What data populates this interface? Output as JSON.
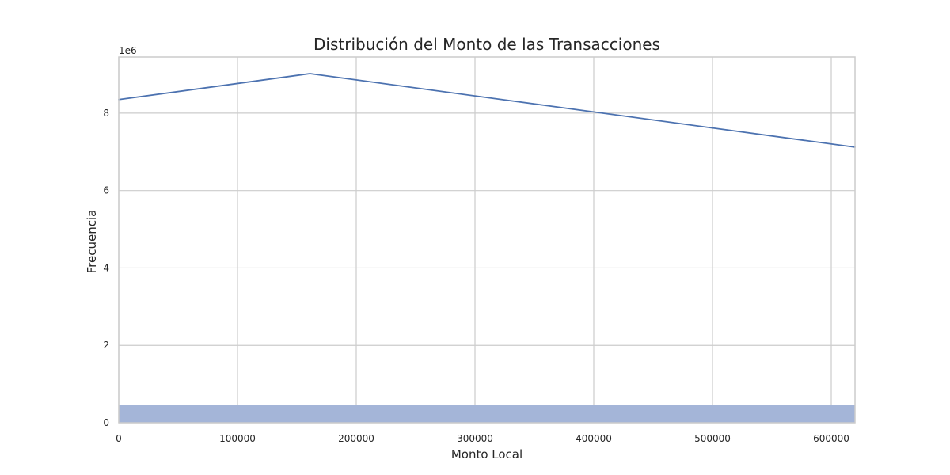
{
  "chart_data": {
    "type": "line",
    "title": "Distribución del Monto de las Transacciones",
    "xlabel": "Monto Local",
    "ylabel": "Frecuencia",
    "y_offset_label": "1e6",
    "xlim": [
      0,
      620000
    ],
    "ylim": [
      0,
      9450000
    ],
    "x_ticks": [
      0,
      100000,
      200000,
      300000,
      400000,
      500000,
      600000
    ],
    "x_tick_labels": [
      "0",
      "100000",
      "200000",
      "300000",
      "400000",
      "500000",
      "600000"
    ],
    "y_ticks": [
      0,
      2000000,
      4000000,
      6000000,
      8000000
    ],
    "y_tick_labels": [
      "0",
      "2",
      "4",
      "6",
      "8"
    ],
    "grid": true,
    "series": [
      {
        "type": "line",
        "color": "#4c72b0",
        "x": [
          0,
          161000,
          620000
        ],
        "y": [
          8350000,
          9020000,
          7120000
        ]
      },
      {
        "type": "histogram",
        "color": "#a4b5d8",
        "bins": [
          [
            0,
            620000
          ]
        ],
        "values": [
          470000
        ]
      }
    ],
    "colors": {
      "axis_frame": "#cccccc",
      "grid": "#cccccc",
      "text": "#262626"
    }
  }
}
